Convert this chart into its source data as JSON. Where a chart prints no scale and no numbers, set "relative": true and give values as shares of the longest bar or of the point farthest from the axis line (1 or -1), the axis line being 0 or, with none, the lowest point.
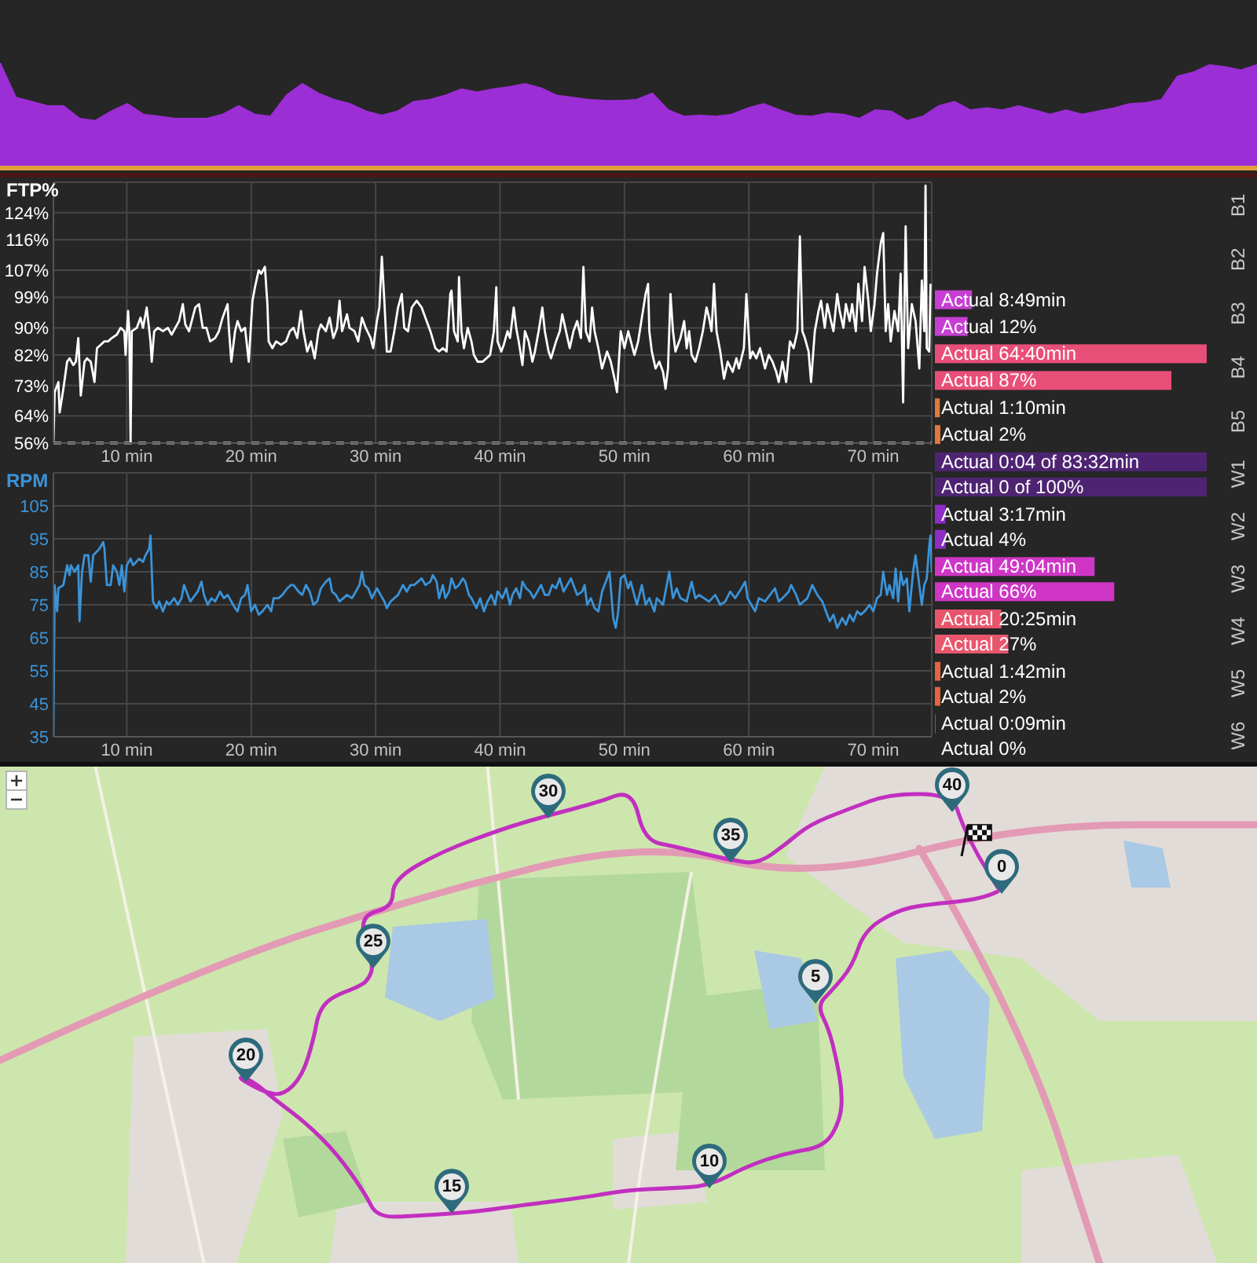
{
  "chart_data": [
    {
      "type": "area",
      "relative": true,
      "color": "#9c2ed6",
      "categories": [
        null,
        null,
        null,
        null,
        null,
        null,
        null,
        null,
        null,
        null,
        null,
        null,
        null,
        null,
        null,
        null,
        null,
        null,
        null,
        null,
        null,
        null,
        null,
        null,
        null,
        null,
        null,
        null,
        null,
        null,
        null,
        null,
        null,
        null,
        null,
        null,
        null,
        null,
        null,
        null,
        null,
        null,
        null,
        null,
        null,
        null,
        null,
        null,
        null,
        null,
        null,
        null,
        null,
        null,
        null,
        null,
        null,
        null,
        null,
        null,
        null,
        null,
        null,
        null,
        null,
        null,
        null,
        null,
        null,
        null,
        null,
        null,
        null,
        null,
        null,
        null,
        null,
        null,
        null,
        null
      ],
      "values": [
        1.0,
        0.67,
        0.63,
        0.59,
        0.59,
        0.47,
        0.45,
        0.54,
        0.61,
        0.51,
        0.49,
        0.47,
        0.47,
        0.47,
        0.51,
        0.59,
        0.51,
        0.49,
        0.69,
        0.8,
        0.71,
        0.65,
        0.61,
        0.54,
        0.5,
        0.54,
        0.63,
        0.65,
        0.69,
        0.75,
        0.72,
        0.75,
        0.77,
        0.8,
        0.76,
        0.69,
        0.67,
        0.65,
        0.64,
        0.64,
        0.65,
        0.71,
        0.55,
        0.49,
        0.5,
        0.49,
        0.51,
        0.57,
        0.61,
        0.55,
        0.5,
        0.49,
        0.52,
        0.51,
        0.47,
        0.55,
        0.54,
        0.45,
        0.49,
        0.59,
        0.63,
        0.55,
        0.57,
        0.55,
        0.59,
        0.55,
        0.51,
        0.55,
        0.51,
        0.54,
        0.57,
        0.61,
        0.62,
        0.65,
        0.87,
        0.91,
        0.98,
        0.96,
        0.93,
        0.98
      ],
      "tick_labels": false
    },
    {
      "type": "line",
      "ylabel": "FTP%",
      "color": "#ffffff",
      "x": [
        4.1,
        4.2,
        4.5,
        4.6,
        4.9,
        5.2,
        5.4,
        5.7,
        5.9,
        6.1,
        6.3,
        6.6,
        6.8,
        7.1,
        7.4,
        7.6,
        7.9,
        8.2,
        8.5,
        8.8,
        9.2,
        9.5,
        9.8,
        9.9,
        10.1,
        10.2,
        10.3,
        10.4,
        10.8,
        11.1,
        11.3,
        11.6,
        11.9,
        12.0,
        12.2,
        12.5,
        12.9,
        13.3,
        13.6,
        13.9,
        14.2,
        14.5,
        14.7,
        15.0,
        15.5,
        15.8,
        16.1,
        16.4,
        16.7,
        17.1,
        17.4,
        17.7,
        18.1,
        18.2,
        18.4,
        18.7,
        18.9,
        19.2,
        19.5,
        19.8,
        20.1,
        20.3,
        20.6,
        20.8,
        21.1,
        21.3,
        21.4,
        21.7,
        22.0,
        22.4,
        22.8,
        23.1,
        23.4,
        23.7,
        24.0,
        24.2,
        24.5,
        24.8,
        25.1,
        25.4,
        25.6,
        26.0,
        26.3,
        26.6,
        26.9,
        27.1,
        27.3,
        27.7,
        27.9,
        28.3,
        28.6,
        28.9,
        29.2,
        29.6,
        29.8,
        30.1,
        30.3,
        30.5,
        30.7,
        30.9,
        31.2,
        31.5,
        31.8,
        32.1,
        32.3,
        32.6,
        32.9,
        33.3,
        33.7,
        34.0,
        34.4,
        34.8,
        35.1,
        35.4,
        35.7,
        36.0,
        36.1,
        36.3,
        36.6,
        36.7,
        36.9,
        37.1,
        37.4,
        37.7,
        37.9,
        38.2,
        38.6,
        38.9,
        39.2,
        39.5,
        39.7,
        39.8,
        40.1,
        40.3,
        40.6,
        40.8,
        41.1,
        41.3,
        41.5,
        41.8,
        42.0,
        42.3,
        42.6,
        42.8,
        43.1,
        43.4,
        43.6,
        43.9,
        44.1,
        44.5,
        44.8,
        45.0,
        45.3,
        45.6,
        45.9,
        46.2,
        46.5,
        46.7,
        46.9,
        47.2,
        47.4,
        47.6,
        47.9,
        48.2,
        48.6,
        48.9,
        49.2,
        49.4,
        49.7,
        50.0,
        50.3,
        50.8,
        51.1,
        51.4,
        51.7,
        51.9,
        52.0,
        52.2,
        52.5,
        52.8,
        53.1,
        53.3,
        53.5,
        53.7,
        53.9,
        54.1,
        54.5,
        54.8,
        55.0,
        55.2,
        55.4,
        55.7,
        56.0,
        56.3,
        56.6,
        56.8,
        57.0,
        57.2,
        57.4,
        57.7,
        58.0,
        58.3,
        58.7,
        59.0,
        59.2,
        59.6,
        59.8,
        60.1,
        60.3,
        60.6,
        60.9,
        61.3,
        61.6,
        61.9,
        62.2,
        62.4,
        62.7,
        63.0,
        63.3,
        63.6,
        63.9,
        64.1,
        64.3,
        64.5,
        64.8,
        65.0,
        65.3,
        65.6,
        65.8,
        66.1,
        66.3,
        66.6,
        66.8,
        67.1,
        67.3,
        67.6,
        67.8,
        68.1,
        68.3,
        68.6,
        68.8,
        69.1,
        69.3,
        69.6,
        69.8,
        70.1,
        70.3,
        70.6,
        70.8,
        71.0,
        71.2,
        71.4,
        71.7,
        72.0,
        72.2,
        72.4,
        72.6,
        72.8,
        73.1,
        73.4,
        73.7,
        73.9,
        74.1,
        74.2,
        74.3,
        74.5,
        74.6
      ],
      "values": [
        56,
        71,
        74,
        65,
        72,
        80,
        81,
        79,
        80,
        87,
        70,
        80,
        81,
        80,
        74,
        84,
        85,
        86,
        86,
        87,
        88,
        90,
        89,
        82,
        95,
        89,
        56,
        89,
        90,
        93,
        90,
        96,
        86,
        80,
        89,
        90,
        89,
        90,
        88,
        90,
        92,
        97,
        91,
        89,
        96,
        97,
        90,
        90,
        86,
        87,
        89,
        93,
        97,
        90,
        80,
        89,
        92,
        89,
        90,
        80,
        98,
        102,
        107,
        106,
        108,
        97,
        86,
        84,
        86,
        85,
        86,
        89,
        90,
        87,
        95,
        89,
        83,
        86,
        81,
        89,
        91,
        89,
        93,
        87,
        90,
        98,
        89,
        94,
        90,
        89,
        86,
        93,
        90,
        87,
        84,
        92,
        96,
        111,
        98,
        83,
        83,
        89,
        96,
        100,
        90,
        89,
        96,
        98,
        96,
        93,
        89,
        84,
        83,
        84,
        83,
        100,
        101,
        89,
        86,
        105,
        89,
        84,
        90,
        86,
        82,
        80,
        80,
        81,
        82,
        89,
        102,
        86,
        83,
        85,
        89,
        87,
        96,
        90,
        86,
        79,
        89,
        86,
        80,
        83,
        89,
        96,
        89,
        83,
        81,
        86,
        89,
        94,
        89,
        84,
        89,
        92,
        87,
        108,
        89,
        86,
        96,
        89,
        84,
        78,
        83,
        80,
        75,
        71,
        89,
        84,
        89,
        82,
        86,
        93,
        100,
        103,
        89,
        83,
        78,
        80,
        77,
        72,
        78,
        100,
        89,
        83,
        87,
        92,
        84,
        89,
        82,
        80,
        84,
        89,
        96,
        93,
        89,
        103,
        89,
        83,
        75,
        80,
        77,
        81,
        78,
        84,
        100,
        81,
        83,
        81,
        84,
        78,
        82,
        80,
        77,
        74,
        80,
        74,
        86,
        84,
        89,
        117,
        89,
        87,
        83,
        74,
        89,
        95,
        98,
        90,
        97,
        92,
        89,
        100,
        95,
        90,
        97,
        92,
        97,
        89,
        103,
        92,
        108,
        98,
        89,
        97,
        106,
        115,
        118,
        89,
        97,
        86,
        95,
        89,
        106,
        68,
        120,
        84,
        97,
        92,
        78,
        104,
        89,
        132,
        84,
        83,
        103
      ],
      "xlim": [
        4.1,
        74.7
      ],
      "xticks": [
        {
          "value": 10,
          "label": "10 min"
        },
        {
          "value": 20,
          "label": "20 min"
        },
        {
          "value": 30,
          "label": "30 min"
        },
        {
          "value": 40,
          "label": "40 min"
        },
        {
          "value": 50,
          "label": "50 min"
        },
        {
          "value": 60,
          "label": "60 min"
        },
        {
          "value": 70,
          "label": "70 min"
        }
      ],
      "ylim": [
        56,
        133
      ],
      "yticks": [
        {
          "value": 56,
          "label": "56%"
        },
        {
          "value": 64,
          "label": "64%"
        },
        {
          "value": 73,
          "label": "73%"
        },
        {
          "value": 82,
          "label": "82%"
        },
        {
          "value": 90,
          "label": "90%"
        },
        {
          "value": 99,
          "label": "99%"
        },
        {
          "value": 107,
          "label": "107%"
        },
        {
          "value": 116,
          "label": "116%"
        },
        {
          "value": 124,
          "label": "124%"
        }
      ],
      "grid": true,
      "ref_lines": [
        {
          "axis": "y",
          "value": 56,
          "color": "#ffffff",
          "line_style": "dashed"
        }
      ]
    },
    {
      "type": "bar",
      "orientation": "horizontal",
      "categories": [
        "B1",
        "B2",
        "B3",
        "B4",
        "B5"
      ],
      "values": [
        null,
        null,
        8.82,
        64.67,
        1.17
      ],
      "colors": [
        null,
        null,
        "#c63fd2",
        "#e84f78",
        "#e2793f"
      ],
      "value_labels": [
        null,
        null,
        "Actual 8:49min",
        "Actual 64:40min",
        "Actual 1:10min"
      ],
      "xlim": [
        0,
        64.67
      ],
      "tick_labels": "y"
    },
    {
      "type": "bar",
      "orientation": "horizontal",
      "categories": [
        null,
        null,
        null,
        null,
        null
      ],
      "values": [
        null,
        null,
        12,
        87,
        2
      ],
      "colors": [
        null,
        null,
        "#c63fd2",
        "#e84f78",
        "#e2793f"
      ],
      "value_labels": [
        null,
        null,
        "Actual 12%",
        "Actual 87%",
        "Actual 2%"
      ],
      "tick_labels": false
    },
    {
      "type": "line",
      "ylabel": "RPM",
      "color": "#3b93d8",
      "x": [
        4.1,
        4.2,
        4.4,
        4.5,
        4.9,
        5.2,
        5.4,
        5.5,
        5.8,
        6.1,
        6.2,
        6.4,
        6.6,
        6.9,
        7.1,
        7.3,
        7.8,
        8.1,
        8.2,
        8.4,
        8.7,
        8.9,
        9.2,
        9.4,
        9.6,
        9.8,
        10.0,
        10.3,
        10.5,
        11.0,
        11.3,
        11.5,
        11.8,
        11.9,
        12.1,
        12.4,
        12.6,
        12.9,
        13.2,
        13.4,
        13.8,
        14.1,
        14.4,
        14.6,
        14.9,
        15.1,
        15.7,
        16.0,
        16.2,
        16.5,
        16.8,
        17.1,
        17.5,
        17.8,
        18.1,
        18.4,
        18.7,
        18.9,
        19.2,
        19.5,
        19.7,
        20.0,
        20.3,
        20.6,
        20.9,
        21.3,
        21.6,
        21.8,
        22.2,
        22.5,
        22.9,
        23.2,
        23.4,
        23.8,
        24.1,
        24.4,
        24.7,
        25.0,
        25.3,
        25.6,
        26.0,
        26.3,
        26.5,
        26.8,
        27.1,
        27.4,
        27.7,
        28.1,
        28.4,
        28.7,
        28.9,
        29.1,
        29.4,
        29.7,
        30.1,
        30.4,
        30.7,
        30.9,
        31.2,
        31.5,
        31.8,
        32.2,
        32.5,
        32.8,
        33.1,
        33.4,
        33.7,
        34.0,
        34.4,
        34.6,
        34.9,
        35.1,
        35.4,
        35.6,
        35.9,
        36.1,
        36.4,
        36.7,
        37.0,
        37.2,
        37.5,
        37.7,
        38.1,
        38.4,
        38.7,
        39.0,
        39.3,
        39.6,
        39.8,
        40.2,
        40.5,
        40.8,
        41.0,
        41.3,
        41.6,
        41.8,
        42.1,
        42.4,
        42.7,
        43.0,
        43.3,
        43.6,
        43.9,
        44.2,
        44.5,
        44.8,
        45.1,
        45.4,
        45.7,
        46.0,
        46.2,
        46.6,
        46.8,
        47.0,
        47.3,
        47.6,
        47.9,
        48.2,
        48.6,
        48.8,
        49.1,
        49.3,
        49.5,
        49.7,
        50.0,
        50.3,
        50.5,
        51.0,
        51.4,
        51.7,
        52.0,
        52.4,
        52.6,
        53.1,
        53.6,
        53.9,
        54.2,
        54.5,
        55.0,
        55.4,
        55.7,
        56.0,
        56.4,
        56.8,
        57.3,
        57.7,
        58.1,
        58.5,
        58.9,
        59.4,
        59.7,
        59.9,
        60.2,
        60.5,
        60.8,
        61.3,
        61.7,
        62.1,
        62.4,
        62.7,
        63.2,
        63.4,
        63.8,
        64.1,
        64.4,
        64.7,
        65.1,
        65.5,
        65.9,
        66.2,
        66.5,
        66.8,
        67.1,
        67.5,
        67.8,
        68.1,
        68.4,
        68.7,
        69.0,
        69.3,
        69.7,
        70.0,
        70.3,
        70.6,
        70.8,
        71.1,
        71.3,
        71.6,
        71.8,
        72.0,
        72.2,
        72.4,
        72.7,
        72.9,
        73.2,
        73.4,
        73.7,
        73.9,
        74.1,
        74.3,
        74.5,
        74.6,
        74.7
      ],
      "values": [
        35,
        81,
        73,
        80,
        81,
        87,
        84,
        87,
        85,
        87,
        70,
        85,
        90,
        90,
        82,
        90,
        92,
        94,
        92,
        81,
        81,
        87,
        85,
        81,
        87,
        79,
        87,
        89,
        87,
        89,
        88,
        90,
        92,
        96,
        76,
        74,
        76,
        73,
        76,
        75,
        77,
        75,
        77,
        81,
        78,
        76,
        79,
        82,
        78,
        75,
        77,
        76,
        79,
        77,
        78,
        76,
        74,
        73,
        77,
        78,
        81,
        73,
        75,
        72,
        73,
        75,
        73,
        77,
        77,
        78,
        80,
        81,
        81,
        79,
        78,
        81,
        79,
        75,
        76,
        80,
        82,
        83,
        79,
        78,
        76,
        77,
        78,
        77,
        79,
        81,
        85,
        81,
        80,
        77,
        80,
        78,
        76,
        74,
        76,
        77,
        78,
        81,
        79,
        81,
        81,
        82,
        83,
        81,
        82,
        84,
        82,
        77,
        81,
        77,
        79,
        83,
        80,
        81,
        83,
        82,
        78,
        77,
        74,
        77,
        73,
        76,
        78,
        75,
        79,
        77,
        80,
        75,
        78,
        80,
        77,
        82,
        80,
        79,
        77,
        79,
        81,
        78,
        78,
        81,
        80,
        83,
        79,
        81,
        83,
        80,
        78,
        79,
        81,
        75,
        77,
        74,
        73,
        79,
        83,
        85,
        71,
        68,
        73,
        83,
        84,
        80,
        82,
        75,
        81,
        75,
        77,
        73,
        77,
        75,
        85,
        77,
        80,
        77,
        76,
        82,
        77,
        78,
        77,
        76,
        78,
        75,
        76,
        79,
        77,
        80,
        82,
        77,
        75,
        73,
        77,
        76,
        78,
        80,
        76,
        77,
        79,
        81,
        78,
        75,
        76,
        77,
        81,
        78,
        76,
        73,
        70,
        72,
        68,
        71,
        69,
        72,
        70,
        73,
        72,
        73,
        75,
        73,
        77,
        78,
        85,
        78,
        81,
        77,
        86,
        76,
        85,
        81,
        83,
        73,
        85,
        90,
        81,
        75,
        81,
        83,
        93,
        96,
        85
      ],
      "xlim": [
        4.1,
        74.7
      ],
      "xticks": [
        {
          "value": 10,
          "label": "10 min"
        },
        {
          "value": 20,
          "label": "20 min"
        },
        {
          "value": 30,
          "label": "30 min"
        },
        {
          "value": 40,
          "label": "40 min"
        },
        {
          "value": 50,
          "label": "50 min"
        },
        {
          "value": 60,
          "label": "60 min"
        },
        {
          "value": 70,
          "label": "70 min"
        }
      ],
      "ylim": [
        35,
        115
      ],
      "yticks": [
        35,
        45,
        55,
        65,
        75,
        85,
        95,
        105
      ],
      "grid": true
    },
    {
      "type": "bar",
      "orientation": "horizontal",
      "categories": [
        "W1",
        "W2",
        "W3",
        "W4",
        "W5",
        "W6"
      ],
      "values": [
        83.53,
        3.28,
        49.07,
        20.42,
        1.7,
        0.15
      ],
      "colors": [
        "#4e2472",
        "#8e2cc6",
        "#cf36c6",
        "#e8566c",
        "#e2663f",
        "#e2663f"
      ],
      "value_labels": [
        "Actual 0:04 of 83:32min",
        "Actual 3:17min",
        "Actual 49:04min",
        "Actual 20:25min",
        "Actual 1:42min",
        "Actual 0:09min"
      ],
      "xlim": [
        0,
        83.53
      ],
      "tick_labels": "y"
    },
    {
      "type": "bar",
      "orientation": "horizontal",
      "categories": [
        null,
        null,
        null,
        null,
        null,
        null
      ],
      "values": [
        100,
        4,
        66,
        27,
        2,
        0
      ],
      "colors": [
        "#4e2472",
        "#8e2cc6",
        "#cf36c6",
        "#e8566c",
        "#e2663f",
        "#e2663f"
      ],
      "value_labels": [
        "Actual 0 of 100%",
        "Actual 4%",
        "Actual 66%",
        "Actual 27%",
        "Actual 2%",
        "Actual 0%"
      ],
      "xlim": [
        0,
        100
      ],
      "tick_labels": false
    },
    {
      "type": "other",
      "annotations": [
        "0",
        "5",
        "10",
        "15",
        "20",
        "25",
        "30",
        "35",
        "40"
      ]
    }
  ]
}
